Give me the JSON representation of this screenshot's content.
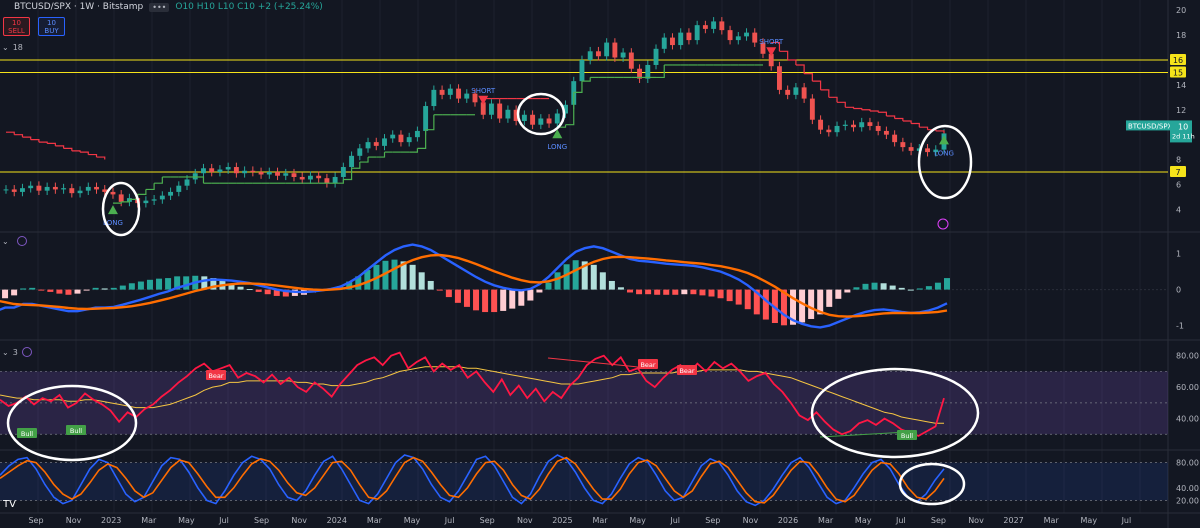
{
  "header": {
    "symbol": "BTCUSD/SPX · 1W · Bitstamp",
    "ohlc": "O10 H10 L10 C10 +2 (+25.24%)",
    "more": "•••"
  },
  "trade": {
    "sell_price": "10",
    "sell_label": "SELL",
    "buy_price": "10",
    "buy_label": "BUY"
  },
  "indicator_labels": {
    "main": "18",
    "macd": "",
    "rsi": "3"
  },
  "price_axis": {
    "labels": [
      "20",
      "18",
      "16",
      "15",
      "14",
      "12",
      "10",
      "8",
      "7",
      "6",
      "4"
    ]
  },
  "price_badges": {
    "symbol": "BTCUSD/SPX",
    "value": "10",
    "countdown": "2d 11h",
    "level16": "16",
    "level15": "15",
    "level7": "7"
  },
  "macd_axis": {
    "labels": [
      "1",
      "0",
      "-1"
    ]
  },
  "rsi_axis": {
    "labels": [
      "80.00",
      "60.00",
      "40.00"
    ]
  },
  "stoch_axis": {
    "labels": [
      "80.00",
      "40.00",
      "20.00"
    ]
  },
  "time_axis": {
    "labels": [
      "Sep",
      "Nov",
      "2023",
      "Mar",
      "May",
      "Jul",
      "Sep",
      "Nov",
      "2024",
      "Mar",
      "May",
      "Jul",
      "Sep",
      "Nov",
      "2025",
      "Mar",
      "May",
      "Jul",
      "Sep",
      "Nov",
      "2026",
      "Mar",
      "May",
      "Jul",
      "Sep",
      "Nov",
      "2027",
      "Mar",
      "May",
      "Jul"
    ]
  },
  "signals": {
    "long": "LONG",
    "short": "SHORT",
    "bull": "Bull",
    "bear": "Bear"
  },
  "tv_logo": "TV",
  "colors": {
    "bg": "#131722",
    "up": "#26a69a",
    "down": "#ef5350",
    "supertrend_up": "#4caf50",
    "supertrend_down": "#f23645",
    "yellow": "#f5e31a",
    "macd": "#2962ff",
    "signal": "#ff6d00",
    "rsi": "#ff1744",
    "rsi_ma": "#f5c542",
    "band": "#7e57c2",
    "stoch_k": "#2962ff",
    "stoch_d": "#ff6d00",
    "annotation": "#ffffff"
  },
  "chart_data": {
    "type": "line",
    "price": {
      "closes": [
        5.6,
        5.4,
        5.7,
        5.9,
        5.5,
        5.8,
        5.6,
        5.7,
        5.3,
        5.5,
        5.8,
        5.6,
        5.4,
        5.2,
        4.6,
        4.9,
        4.5,
        4.7,
        4.8,
        5.1,
        5.4,
        5.9,
        6.4,
        6.9,
        7.3,
        7.0,
        7.2,
        7.4,
        6.9,
        7.1,
        7.0,
        6.8,
        7.0,
        6.7,
        6.9,
        6.6,
        6.4,
        6.7,
        6.5,
        6.1,
        6.6,
        7.4,
        8.3,
        8.9,
        9.4,
        9.1,
        9.7,
        10.0,
        9.4,
        9.8,
        10.3,
        12.3,
        13.6,
        13.2,
        13.7,
        12.9,
        13.3,
        12.6,
        11.6,
        12.5,
        11.3,
        12.0,
        11.1,
        11.6,
        10.8,
        11.3,
        10.9,
        11.7,
        12.4,
        14.3,
        16.0,
        16.7,
        16.3,
        17.4,
        16.2,
        16.6,
        15.3,
        14.5,
        15.6,
        16.9,
        17.8,
        17.2,
        18.2,
        17.6,
        18.8,
        18.5,
        19.1,
        18.4,
        17.6,
        17.9,
        18.2,
        17.4,
        16.5,
        15.5,
        13.6,
        13.2,
        13.8,
        12.9,
        11.2,
        10.4,
        10.2,
        10.7,
        10.8,
        10.6,
        11.0,
        10.7,
        10.3,
        10.0,
        9.4,
        9.0,
        8.7,
        8.9,
        8.6,
        8.8,
        10.1
      ],
      "supertrend": [
        10.2,
        10.0,
        9.8,
        9.6,
        9.4,
        9.3,
        9.1,
        8.9,
        8.7,
        8.6,
        8.4,
        8.2,
        8.0,
        4.5,
        4.6,
        4.8,
        5.2,
        5.6,
        6.1,
        6.6,
        6.6,
        6.6,
        6.6,
        6.6,
        6.1,
        6.1,
        6.1,
        6.1,
        6.1,
        6.1,
        6.1,
        6.1,
        6.1,
        6.1,
        6.1,
        6.1,
        6.1,
        6.1,
        6.1,
        6.1,
        6.1,
        6.4,
        7.3,
        7.8,
        8.2,
        8.2,
        8.6,
        8.6,
        8.6,
        8.6,
        8.9,
        10.4,
        11.6,
        11.6,
        11.6,
        11.6,
        11.6,
        11.6,
        12.9,
        12.9,
        12.9,
        12.9,
        12.9,
        12.9,
        12.9,
        12.9,
        12.9,
        10.6,
        10.8,
        13.4,
        14.3,
        14.6,
        14.6,
        14.6,
        14.6,
        14.6,
        14.6,
        14.6,
        14.6,
        14.6,
        15.6,
        15.6,
        15.6,
        15.6,
        15.6,
        15.6,
        15.6,
        15.6,
        15.6,
        15.6,
        15.6,
        15.6,
        15.6,
        17.4,
        16.7,
        16.0,
        15.6,
        14.9,
        14.3,
        13.6,
        13.0,
        12.6,
        12.2,
        12.1,
        12.0,
        11.9,
        11.8,
        11.5,
        11.3,
        11.1,
        10.9,
        10.6,
        10.4,
        10.3,
        10.1
      ],
      "supertrend_dir": [
        -1,
        -1,
        -1,
        -1,
        -1,
        -1,
        -1,
        -1,
        -1,
        -1,
        -1,
        -1,
        -1,
        1,
        1,
        1,
        1,
        1,
        1,
        1,
        1,
        1,
        1,
        1,
        1,
        1,
        1,
        1,
        1,
        1,
        1,
        1,
        1,
        1,
        1,
        1,
        1,
        1,
        1,
        1,
        1,
        1,
        1,
        1,
        1,
        1,
        1,
        1,
        1,
        1,
        1,
        1,
        1,
        1,
        1,
        1,
        1,
        1,
        -1,
        -1,
        -1,
        -1,
        -1,
        -1,
        -1,
        -1,
        -1,
        1,
        1,
        1,
        1,
        1,
        1,
        1,
        1,
        1,
        1,
        1,
        1,
        1,
        1,
        1,
        1,
        1,
        1,
        1,
        1,
        1,
        1,
        1,
        1,
        1,
        1,
        -1,
        -1,
        -1,
        -1,
        -1,
        -1,
        -1,
        -1,
        -1,
        -1,
        -1,
        -1,
        -1,
        -1,
        -1,
        -1,
        -1,
        -1,
        -1,
        -1,
        -1,
        -1
      ],
      "horizontal_levels": [
        16,
        15,
        7
      ],
      "y_range": [
        2.5,
        20.5
      ]
    },
    "macd": {
      "macd": [
        -0.6,
        -0.5,
        -0.5,
        -0.4,
        -0.4,
        -0.45,
        -0.5,
        -0.55,
        -0.6,
        -0.6,
        -0.55,
        -0.5,
        -0.5,
        -0.48,
        -0.42,
        -0.35,
        -0.28,
        -0.2,
        -0.12,
        -0.05,
        0.05,
        0.12,
        0.2,
        0.25,
        0.28,
        0.27,
        0.25,
        0.22,
        0.18,
        0.12,
        0.06,
        0.0,
        -0.04,
        -0.06,
        -0.07,
        -0.05,
        -0.02,
        0.02,
        0.08,
        0.2,
        0.35,
        0.55,
        0.75,
        0.95,
        1.1,
        1.2,
        1.25,
        1.2,
        1.1,
        0.95,
        0.8,
        0.65,
        0.5,
        0.35,
        0.22,
        0.12,
        0.05,
        0.0,
        -0.02,
        0.02,
        0.15,
        0.35,
        0.6,
        0.85,
        1.05,
        1.15,
        1.2,
        1.15,
        1.05,
        0.95,
        0.85,
        0.8,
        0.78,
        0.75,
        0.72,
        0.7,
        0.68,
        0.66,
        0.62,
        0.56,
        0.5,
        0.4,
        0.28,
        0.12,
        -0.08,
        -0.3,
        -0.5,
        -0.7,
        -0.85,
        -0.95,
        -1.02,
        -1.05,
        -1.0,
        -0.9,
        -0.8,
        -0.7,
        -0.62,
        -0.57,
        -0.55,
        -0.58,
        -0.62,
        -0.65,
        -0.63,
        -0.58,
        -0.5,
        -0.38
      ],
      "signal": [
        -0.3,
        -0.35,
        -0.4,
        -0.42,
        -0.43,
        -0.44,
        -0.46,
        -0.48,
        -0.51,
        -0.53,
        -0.54,
        -0.53,
        -0.52,
        -0.51,
        -0.49,
        -0.46,
        -0.42,
        -0.37,
        -0.31,
        -0.25,
        -0.18,
        -0.11,
        -0.04,
        0.02,
        0.08,
        0.12,
        0.15,
        0.17,
        0.17,
        0.16,
        0.14,
        0.11,
        0.08,
        0.05,
        0.02,
        0.0,
        -0.01,
        0.0,
        0.02,
        0.06,
        0.12,
        0.21,
        0.32,
        0.45,
        0.58,
        0.71,
        0.82,
        0.9,
        0.95,
        0.96,
        0.93,
        0.88,
        0.8,
        0.71,
        0.61,
        0.51,
        0.42,
        0.33,
        0.26,
        0.21,
        0.2,
        0.23,
        0.3,
        0.41,
        0.54,
        0.66,
        0.77,
        0.85,
        0.9,
        0.91,
        0.9,
        0.88,
        0.86,
        0.84,
        0.81,
        0.79,
        0.76,
        0.74,
        0.72,
        0.68,
        0.65,
        0.6,
        0.54,
        0.46,
        0.35,
        0.22,
        0.08,
        -0.08,
        -0.24,
        -0.38,
        -0.51,
        -0.62,
        -0.7,
        -0.74,
        -0.75,
        -0.74,
        -0.72,
        -0.69,
        -0.66,
        -0.65,
        -0.65,
        -0.65,
        -0.65,
        -0.64,
        -0.62,
        -0.58
      ],
      "y_range": [
        -1.4,
        1.6
      ]
    },
    "rsi": {
      "values": [
        52,
        48,
        50,
        54,
        49,
        53,
        51,
        55,
        47,
        50,
        56,
        52,
        49,
        45,
        38,
        44,
        41,
        46,
        49,
        54,
        58,
        63,
        67,
        72,
        75,
        70,
        72,
        74,
        66,
        69,
        67,
        63,
        68,
        62,
        66,
        60,
        57,
        63,
        59,
        54,
        62,
        68,
        74,
        77,
        79,
        74,
        80,
        82,
        72,
        76,
        79,
        70,
        75,
        71,
        74,
        66,
        70,
        63,
        57,
        65,
        55,
        61,
        53,
        59,
        51,
        57,
        53,
        61,
        66,
        74,
        78,
        80,
        74,
        79,
        70,
        72,
        64,
        60,
        66,
        71,
        74,
        69,
        75,
        70,
        76,
        72,
        75,
        70,
        64,
        67,
        69,
        62,
        57,
        50,
        42,
        39,
        44,
        38,
        33,
        30,
        32,
        37,
        39,
        36,
        40,
        37,
        33,
        31,
        29,
        32,
        35,
        53
      ],
      "ma": [
        55,
        54,
        53,
        53,
        52,
        52,
        52,
        52,
        51,
        51,
        52,
        52,
        51,
        50,
        49,
        48,
        47,
        47,
        47,
        48,
        49,
        51,
        53,
        55,
        58,
        60,
        61,
        63,
        63,
        64,
        64,
        64,
        64,
        64,
        64,
        63,
        63,
        62,
        62,
        61,
        61,
        61,
        62,
        63,
        65,
        66,
        68,
        70,
        71,
        72,
        73,
        73,
        73,
        73,
        73,
        72,
        72,
        71,
        70,
        69,
        68,
        67,
        66,
        65,
        64,
        63,
        62,
        62,
        62,
        63,
        64,
        65,
        66,
        68,
        68,
        69,
        69,
        69,
        69,
        69,
        70,
        70,
        70,
        71,
        71,
        71,
        71,
        71,
        70,
        70,
        69,
        68,
        67,
        66,
        64,
        62,
        60,
        58,
        56,
        54,
        52,
        50,
        48,
        46,
        44,
        43,
        41,
        40,
        39,
        38,
        37,
        37
      ],
      "y_range": [
        20,
        90
      ],
      "band": [
        30,
        70
      ]
    },
    "stochastic": {
      "k": [
        60,
        75,
        85,
        88,
        70,
        45,
        25,
        15,
        20,
        45,
        70,
        85,
        80,
        55,
        30,
        18,
        25,
        50,
        75,
        88,
        85,
        65,
        40,
        20,
        15,
        35,
        60,
        80,
        90,
        85,
        70,
        45,
        25,
        20,
        35,
        60,
        82,
        90,
        70,
        45,
        20,
        15,
        30,
        55,
        80,
        92,
        88,
        70,
        45,
        25,
        18,
        35,
        60,
        85,
        90,
        75,
        50,
        25,
        15,
        30,
        58,
        82,
        92,
        85,
        65,
        40,
        20,
        15,
        30,
        55,
        78,
        88,
        82,
        60,
        35,
        20,
        25,
        50,
        75,
        86,
        80,
        60,
        35,
        18,
        12,
        20,
        38,
        60,
        80,
        88,
        72,
        48,
        25,
        15,
        20,
        40,
        62,
        80,
        85,
        70,
        45,
        25,
        18,
        30,
        52,
        70
      ],
      "d": [
        55,
        65,
        75,
        83,
        80,
        65,
        45,
        30,
        22,
        30,
        48,
        68,
        78,
        72,
        55,
        35,
        25,
        32,
        52,
        72,
        84,
        80,
        62,
        42,
        25,
        25,
        40,
        60,
        78,
        86,
        82,
        68,
        48,
        32,
        28,
        40,
        60,
        80,
        82,
        68,
        45,
        25,
        22,
        35,
        58,
        80,
        88,
        82,
        65,
        45,
        28,
        25,
        40,
        62,
        80,
        82,
        68,
        45,
        28,
        22,
        38,
        62,
        82,
        88,
        78,
        58,
        38,
        22,
        22,
        38,
        62,
        80,
        84,
        75,
        55,
        35,
        25,
        35,
        58,
        78,
        82,
        72,
        52,
        32,
        18,
        16,
        28,
        48,
        68,
        82,
        80,
        62,
        40,
        22,
        18,
        28,
        48,
        68,
        80,
        78,
        62,
        40,
        25,
        22,
        35,
        55
      ],
      "y_range": [
        0,
        100
      ]
    }
  }
}
